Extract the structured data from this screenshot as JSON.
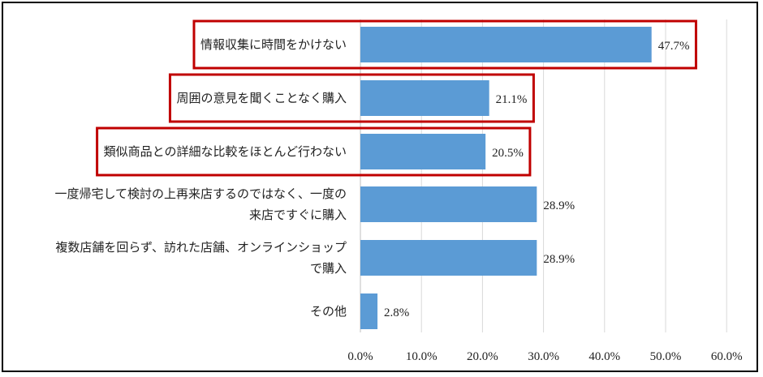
{
  "chart_data": {
    "type": "bar",
    "orientation": "horizontal",
    "categories": [
      [
        "情報収集に時間をかけない"
      ],
      [
        "周囲の意見を聞くことなく購入"
      ],
      [
        "類似商品との詳細な比較をほとんど行わない"
      ],
      [
        "一度帰宅して検討の上再来店するのではなく、一度の",
        "来店ですぐに購入"
      ],
      [
        "複数店舗を回らず、訪れた店舗、オンラインショップ",
        "で購入"
      ],
      [
        "その他"
      ]
    ],
    "values": [
      47.7,
      21.1,
      20.5,
      28.9,
      28.9,
      2.8
    ],
    "value_labels": [
      "47.7%",
      "21.1%",
      "20.5%",
      "28.9%",
      "28.9%",
      "2.8%"
    ],
    "highlighted": [
      true,
      true,
      true,
      false,
      false,
      false
    ],
    "x_ticks": [
      "0.0%",
      "10.0%",
      "20.0%",
      "30.0%",
      "40.0%",
      "50.0%",
      "60.0%"
    ],
    "xlim": [
      0,
      60
    ],
    "grid": "vertical",
    "legend": "none",
    "colors": {
      "bar": "#5b9bd5",
      "highlight_box": "#c00000",
      "grid": "#d9d9d9"
    }
  }
}
